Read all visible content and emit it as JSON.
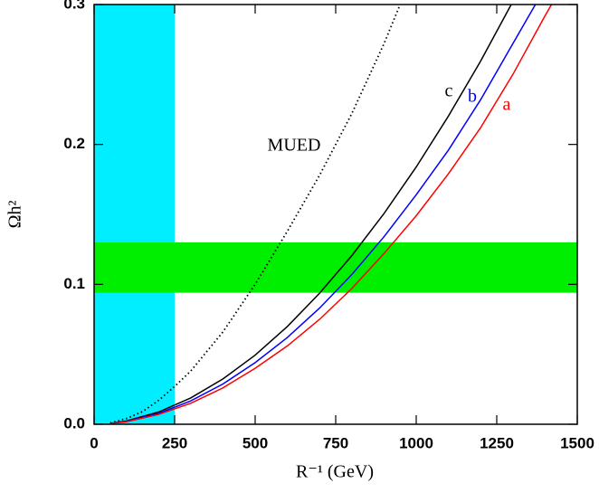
{
  "chart_data": {
    "type": "line",
    "xlabel": "R⁻¹ (GeV)",
    "ylabel": "Ωh²",
    "xlim": [
      0,
      1500
    ],
    "ylim": [
      0,
      0.3
    ],
    "xticks": [
      0,
      250,
      500,
      750,
      1000,
      1250,
      1500
    ],
    "yticks": [
      {
        "value": 0,
        "label": "0.0"
      },
      0.1,
      0.2,
      0.3
    ],
    "x_band": {
      "range": [
        0,
        250
      ],
      "color": "#00eeff"
    },
    "y_band": {
      "range": [
        0.094,
        0.13
      ],
      "color": "#00ee00"
    },
    "series": [
      {
        "name": "MUED",
        "color": "#000000",
        "style": "dotted",
        "x": [
          50,
          100,
          150,
          200,
          250,
          300,
          400,
          500,
          600,
          700,
          800,
          900,
          950
        ],
        "values": [
          0.001,
          0.004,
          0.009,
          0.017,
          0.027,
          0.038,
          0.066,
          0.1,
          0.138,
          0.178,
          0.222,
          0.272,
          0.3
        ]
      },
      {
        "name": "c",
        "color": "#000000",
        "style": "solid",
        "x": [
          50,
          100,
          200,
          300,
          400,
          500,
          600,
          700,
          800,
          900,
          1000,
          1100,
          1200,
          1295
        ],
        "values": [
          0.0006,
          0.0023,
          0.0087,
          0.0188,
          0.0324,
          0.0494,
          0.0699,
          0.0937,
          0.1205,
          0.1506,
          0.1839,
          0.2203,
          0.2596,
          0.3
        ]
      },
      {
        "name": "b",
        "color": "#0000ff",
        "style": "solid",
        "x": [
          50,
          100,
          200,
          300,
          400,
          500,
          600,
          700,
          800,
          900,
          1000,
          1100,
          1200,
          1300,
          1370
        ],
        "values": [
          0.0005,
          0.002,
          0.0077,
          0.0167,
          0.0288,
          0.044,
          0.062,
          0.083,
          0.107,
          0.134,
          0.164,
          0.196,
          0.232,
          0.272,
          0.3
        ]
      },
      {
        "name": "a",
        "color": "#ff0000",
        "style": "solid",
        "x": [
          50,
          100,
          200,
          300,
          400,
          500,
          600,
          700,
          800,
          900,
          1000,
          1100,
          1200,
          1300,
          1400,
          1420
        ],
        "values": [
          0.0005,
          0.0018,
          0.007,
          0.015,
          0.026,
          0.04,
          0.056,
          0.075,
          0.097,
          0.122,
          0.149,
          0.179,
          0.212,
          0.25,
          0.292,
          0.3
        ]
      }
    ]
  }
}
